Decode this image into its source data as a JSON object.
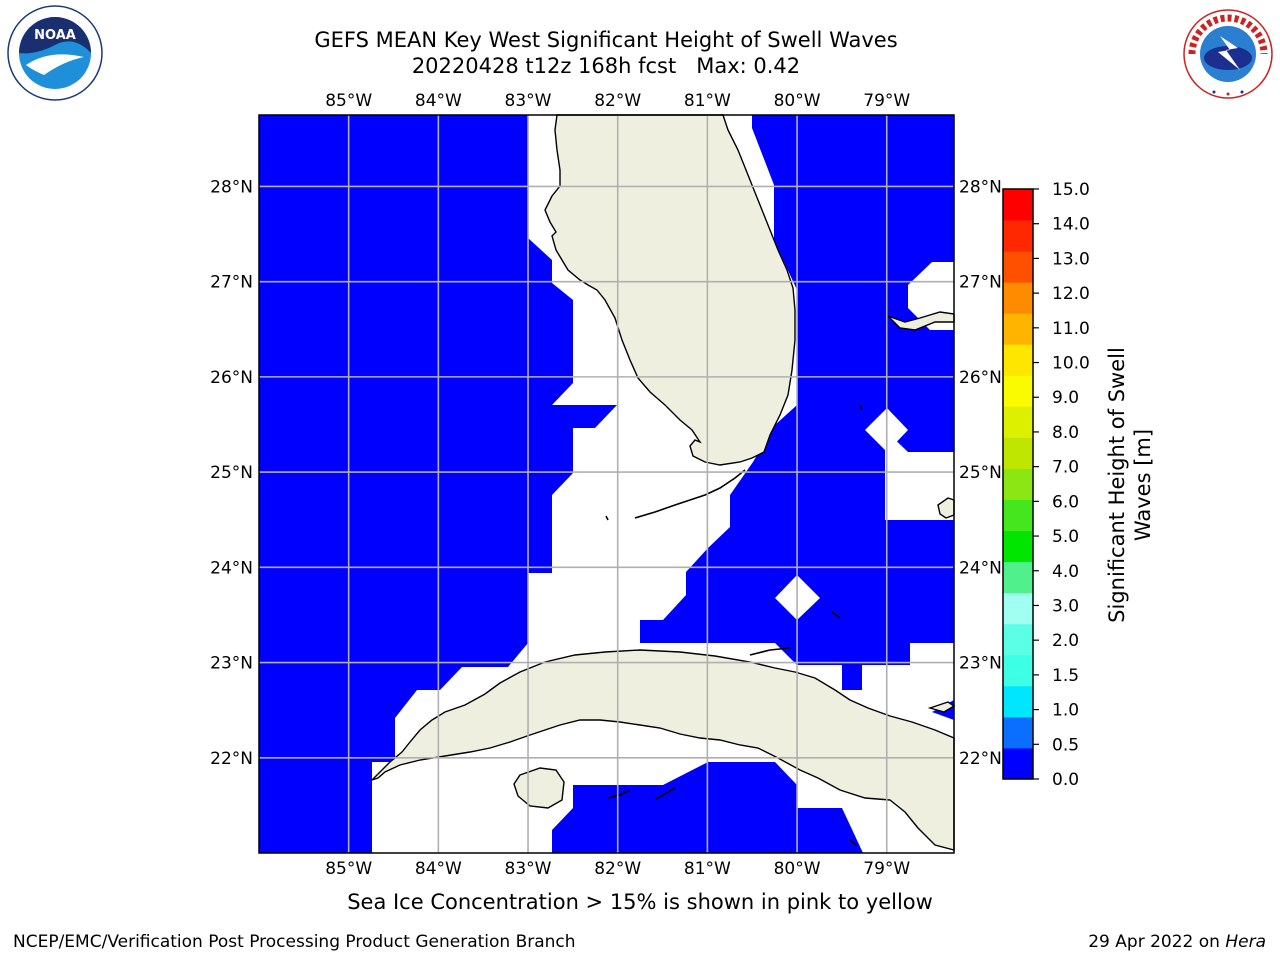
{
  "header": {
    "title_line1": "GEFS MEAN Key West Significant Height of Swell Waves",
    "title_line2": "20220428 t12z 168h fcst   Max: 0.42"
  },
  "logos": {
    "left_text": "NOAA",
    "right_text": "NATIONAL WEATHER SERVICE"
  },
  "map": {
    "lon_ticks": [
      "85°W",
      "84°W",
      "83°W",
      "82°W",
      "81°W",
      "80°W",
      "79°W"
    ],
    "lon_values": [
      -85,
      -84,
      -83,
      -82,
      -81,
      -80,
      -79
    ],
    "lat_ticks": [
      "28°N",
      "27°N",
      "26°N",
      "25°N",
      "24°N",
      "23°N",
      "22°N"
    ],
    "lat_values": [
      28,
      27,
      26,
      25,
      24,
      23,
      22
    ],
    "extent": {
      "lon_min": -86,
      "lon_max": -78.25,
      "lat_min": 21,
      "lat_max": 28.75
    },
    "field_color": "#0000ff",
    "land_color": "#efefdf",
    "grid_color": "#b0b0b0"
  },
  "colorbar": {
    "label_line1": "Significant Height of Swell",
    "label_line2": "Waves [m]",
    "ticks": [
      "0.0",
      "0.5",
      "1.0",
      "1.5",
      "2.0",
      "3.0",
      "4.0",
      "5.0",
      "6.0",
      "7.0",
      "8.0",
      "9.0",
      "10.0",
      "11.0",
      "12.0",
      "13.0",
      "14.0",
      "15.0"
    ],
    "colors": [
      "#0000ff",
      "#0a6eff",
      "#00e6ff",
      "#3cffe6",
      "#5affe6",
      "#a0fff0",
      "#50f08c",
      "#00e600",
      "#46e61e",
      "#8ce614",
      "#bee600",
      "#dcf000",
      "#fafa00",
      "#ffe600",
      "#ffb400",
      "#ff8c00",
      "#ff5000",
      "#ff2800",
      "#ff0000"
    ]
  },
  "footer": {
    "note": "Sea Ice Concentration > 15% is shown in pink to yellow",
    "credit_left": "NCEP/EMC/Verification Post Processing Product Generation Branch",
    "credit_right_date": "29 Apr 2022 on ",
    "credit_right_host": "Hera"
  }
}
